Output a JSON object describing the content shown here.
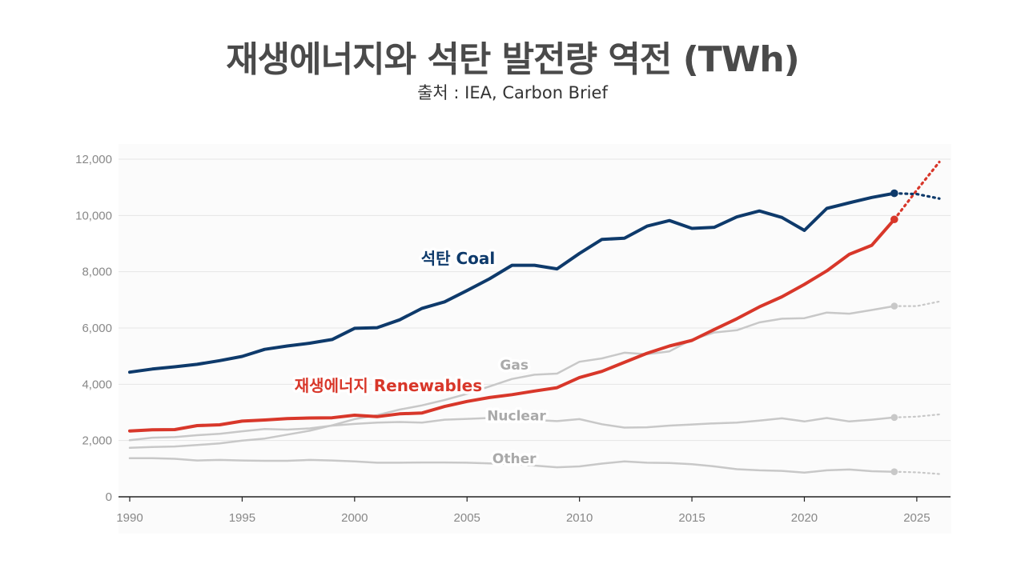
{
  "title": "재생에너지와 석탄 발전량 역전 (TWh)",
  "subtitle": "출처 : IEA, Carbon Brief",
  "chart_data": {
    "type": "line",
    "title": "재생에너지와 석탄 발전량 역전 (TWh)",
    "source": "출처 : IEA, Carbon Brief",
    "xlim": [
      1990,
      2026.5
    ],
    "ylim": [
      0,
      12000
    ],
    "x_ticks": [
      1990,
      1995,
      2000,
      2005,
      2010,
      2015,
      2020,
      2025
    ],
    "y_ticks": [
      0,
      2000,
      4000,
      6000,
      8000,
      10000,
      12000
    ],
    "x_tick_labels": [
      "1990",
      "1995",
      "2000",
      "2005",
      "2010",
      "2015",
      "2020",
      "2025"
    ],
    "y_tick_labels": [
      "0",
      "2,000",
      "4,000",
      "6,000",
      "8,000",
      "10,000",
      "12,000"
    ],
    "grid": true,
    "colors": {
      "coal": "#0e3a6b",
      "renewables": "#d8372a",
      "other": "#c8c8c8",
      "grid": "#e6e6e6",
      "plot_bg": "#fbfbfb"
    },
    "series": [
      {
        "key": "coal",
        "name": "석탄 Coal",
        "label_korean": "석탄",
        "label_english": "Coal",
        "color": "#0e3a6b",
        "x": [
          1990,
          1991,
          1992,
          1993,
          1994,
          1995,
          1996,
          1997,
          1998,
          1999,
          2000,
          2001,
          2002,
          2003,
          2004,
          2005,
          2006,
          2007,
          2008,
          2009,
          2010,
          2011,
          2012,
          2013,
          2014,
          2015,
          2016,
          2017,
          2018,
          2019,
          2020,
          2021,
          2022,
          2023,
          2024
        ],
        "values": [
          4430,
          4540,
          4620,
          4710,
          4840,
          4990,
          5240,
          5360,
          5460,
          5590,
          5990,
          6010,
          6290,
          6700,
          6930,
          7330,
          7750,
          8230,
          8230,
          8100,
          8650,
          9150,
          9190,
          9620,
          9820,
          9540,
          9580,
          9950,
          10160,
          9930,
          9470,
          10250,
          10450,
          10640,
          10790
        ],
        "projection_x": [
          2024,
          2025,
          2026
        ],
        "projection_values": [
          10790,
          10760,
          10600
        ]
      },
      {
        "key": "renewables",
        "name": "재생에너지 Renewables",
        "label_korean": "재생에너지",
        "label_english": "Renewables",
        "color": "#d8372a",
        "x": [
          1990,
          1991,
          1992,
          1993,
          1994,
          1995,
          1996,
          1997,
          1998,
          1999,
          2000,
          2001,
          2002,
          2003,
          2004,
          2005,
          2006,
          2007,
          2008,
          2009,
          2010,
          2011,
          2012,
          2013,
          2014,
          2015,
          2016,
          2017,
          2018,
          2019,
          2020,
          2021,
          2022,
          2023,
          2024
        ],
        "values": [
          2340,
          2380,
          2390,
          2530,
          2560,
          2690,
          2730,
          2780,
          2800,
          2810,
          2900,
          2850,
          2950,
          2980,
          3210,
          3390,
          3530,
          3630,
          3760,
          3880,
          4240,
          4460,
          4780,
          5100,
          5360,
          5560,
          5950,
          6330,
          6750,
          7110,
          7550,
          8030,
          8620,
          8940,
          9860
        ],
        "projection_x": [
          2024,
          2025,
          2026
        ],
        "projection_values": [
          9860,
          10900,
          11900
        ]
      },
      {
        "key": "gas",
        "name": "Gas",
        "label": "Gas",
        "color": "#c8c8c8",
        "x": [
          1990,
          1991,
          1992,
          1993,
          1994,
          1995,
          1996,
          1997,
          1998,
          1999,
          2000,
          2001,
          2002,
          2003,
          2004,
          2005,
          2006,
          2007,
          2008,
          2009,
          2010,
          2011,
          2012,
          2013,
          2014,
          2015,
          2016,
          2017,
          2018,
          2019,
          2020,
          2021,
          2022,
          2023,
          2024
        ],
        "values": [
          1740,
          1770,
          1790,
          1840,
          1900,
          2000,
          2070,
          2210,
          2350,
          2540,
          2760,
          2900,
          3100,
          3250,
          3440,
          3660,
          3920,
          4190,
          4340,
          4380,
          4800,
          4920,
          5120,
          5070,
          5170,
          5590,
          5840,
          5920,
          6200,
          6330,
          6350,
          6550,
          6510,
          6640,
          6780
        ],
        "projection_x": [
          2024,
          2025,
          2026
        ],
        "projection_values": [
          6780,
          6780,
          6940
        ]
      },
      {
        "key": "nuclear",
        "name": "Nuclear",
        "label": "Nuclear",
        "color": "#c8c8c8",
        "x": [
          1990,
          1991,
          1992,
          1993,
          1994,
          1995,
          1996,
          1997,
          1998,
          1999,
          2000,
          2001,
          2002,
          2003,
          2004,
          2005,
          2006,
          2007,
          2008,
          2009,
          2010,
          2011,
          2012,
          2013,
          2014,
          2015,
          2016,
          2017,
          2018,
          2019,
          2020,
          2021,
          2022,
          2023,
          2024
        ],
        "values": [
          2010,
          2100,
          2120,
          2190,
          2240,
          2330,
          2410,
          2390,
          2430,
          2530,
          2590,
          2640,
          2660,
          2640,
          2740,
          2770,
          2800,
          2730,
          2730,
          2690,
          2760,
          2580,
          2460,
          2470,
          2530,
          2570,
          2610,
          2640,
          2710,
          2790,
          2680,
          2800,
          2680,
          2740,
          2820
        ],
        "projection_x": [
          2024,
          2025,
          2026
        ],
        "projection_values": [
          2820,
          2850,
          2930
        ]
      },
      {
        "key": "other",
        "name": "Other",
        "label": "Other",
        "color": "#c8c8c8",
        "x": [
          1990,
          1991,
          1992,
          1993,
          1994,
          1995,
          1996,
          1997,
          1998,
          1999,
          2000,
          2001,
          2002,
          2003,
          2004,
          2005,
          2006,
          2007,
          2008,
          2009,
          2010,
          2011,
          2012,
          2013,
          2014,
          2015,
          2016,
          2017,
          2018,
          2019,
          2020,
          2021,
          2022,
          2023,
          2024
        ],
        "values": [
          1370,
          1370,
          1350,
          1290,
          1310,
          1290,
          1280,
          1280,
          1310,
          1290,
          1260,
          1210,
          1210,
          1220,
          1220,
          1210,
          1190,
          1170,
          1110,
          1050,
          1080,
          1180,
          1260,
          1210,
          1200,
          1160,
          1080,
          980,
          940,
          920,
          860,
          940,
          970,
          910,
          890
        ],
        "projection_x": [
          2024,
          2025,
          2026
        ],
        "projection_values": [
          890,
          870,
          810
        ]
      }
    ],
    "series_labels": [
      {
        "key": "coal",
        "text": "석탄 Coal",
        "x": 2004.6,
        "y": 8280
      },
      {
        "key": "renewables",
        "text": "재생에너지 Renewables",
        "x": 2001.5,
        "y": 3760
      },
      {
        "key": "gas",
        "text": "Gas",
        "x": 2007.1,
        "y": 4520
      },
      {
        "key": "nuclear",
        "text": "Nuclear",
        "x": 2007.2,
        "y": 2720
      },
      {
        "key": "other",
        "text": "Other",
        "x": 2007.1,
        "y": 1200
      }
    ]
  }
}
